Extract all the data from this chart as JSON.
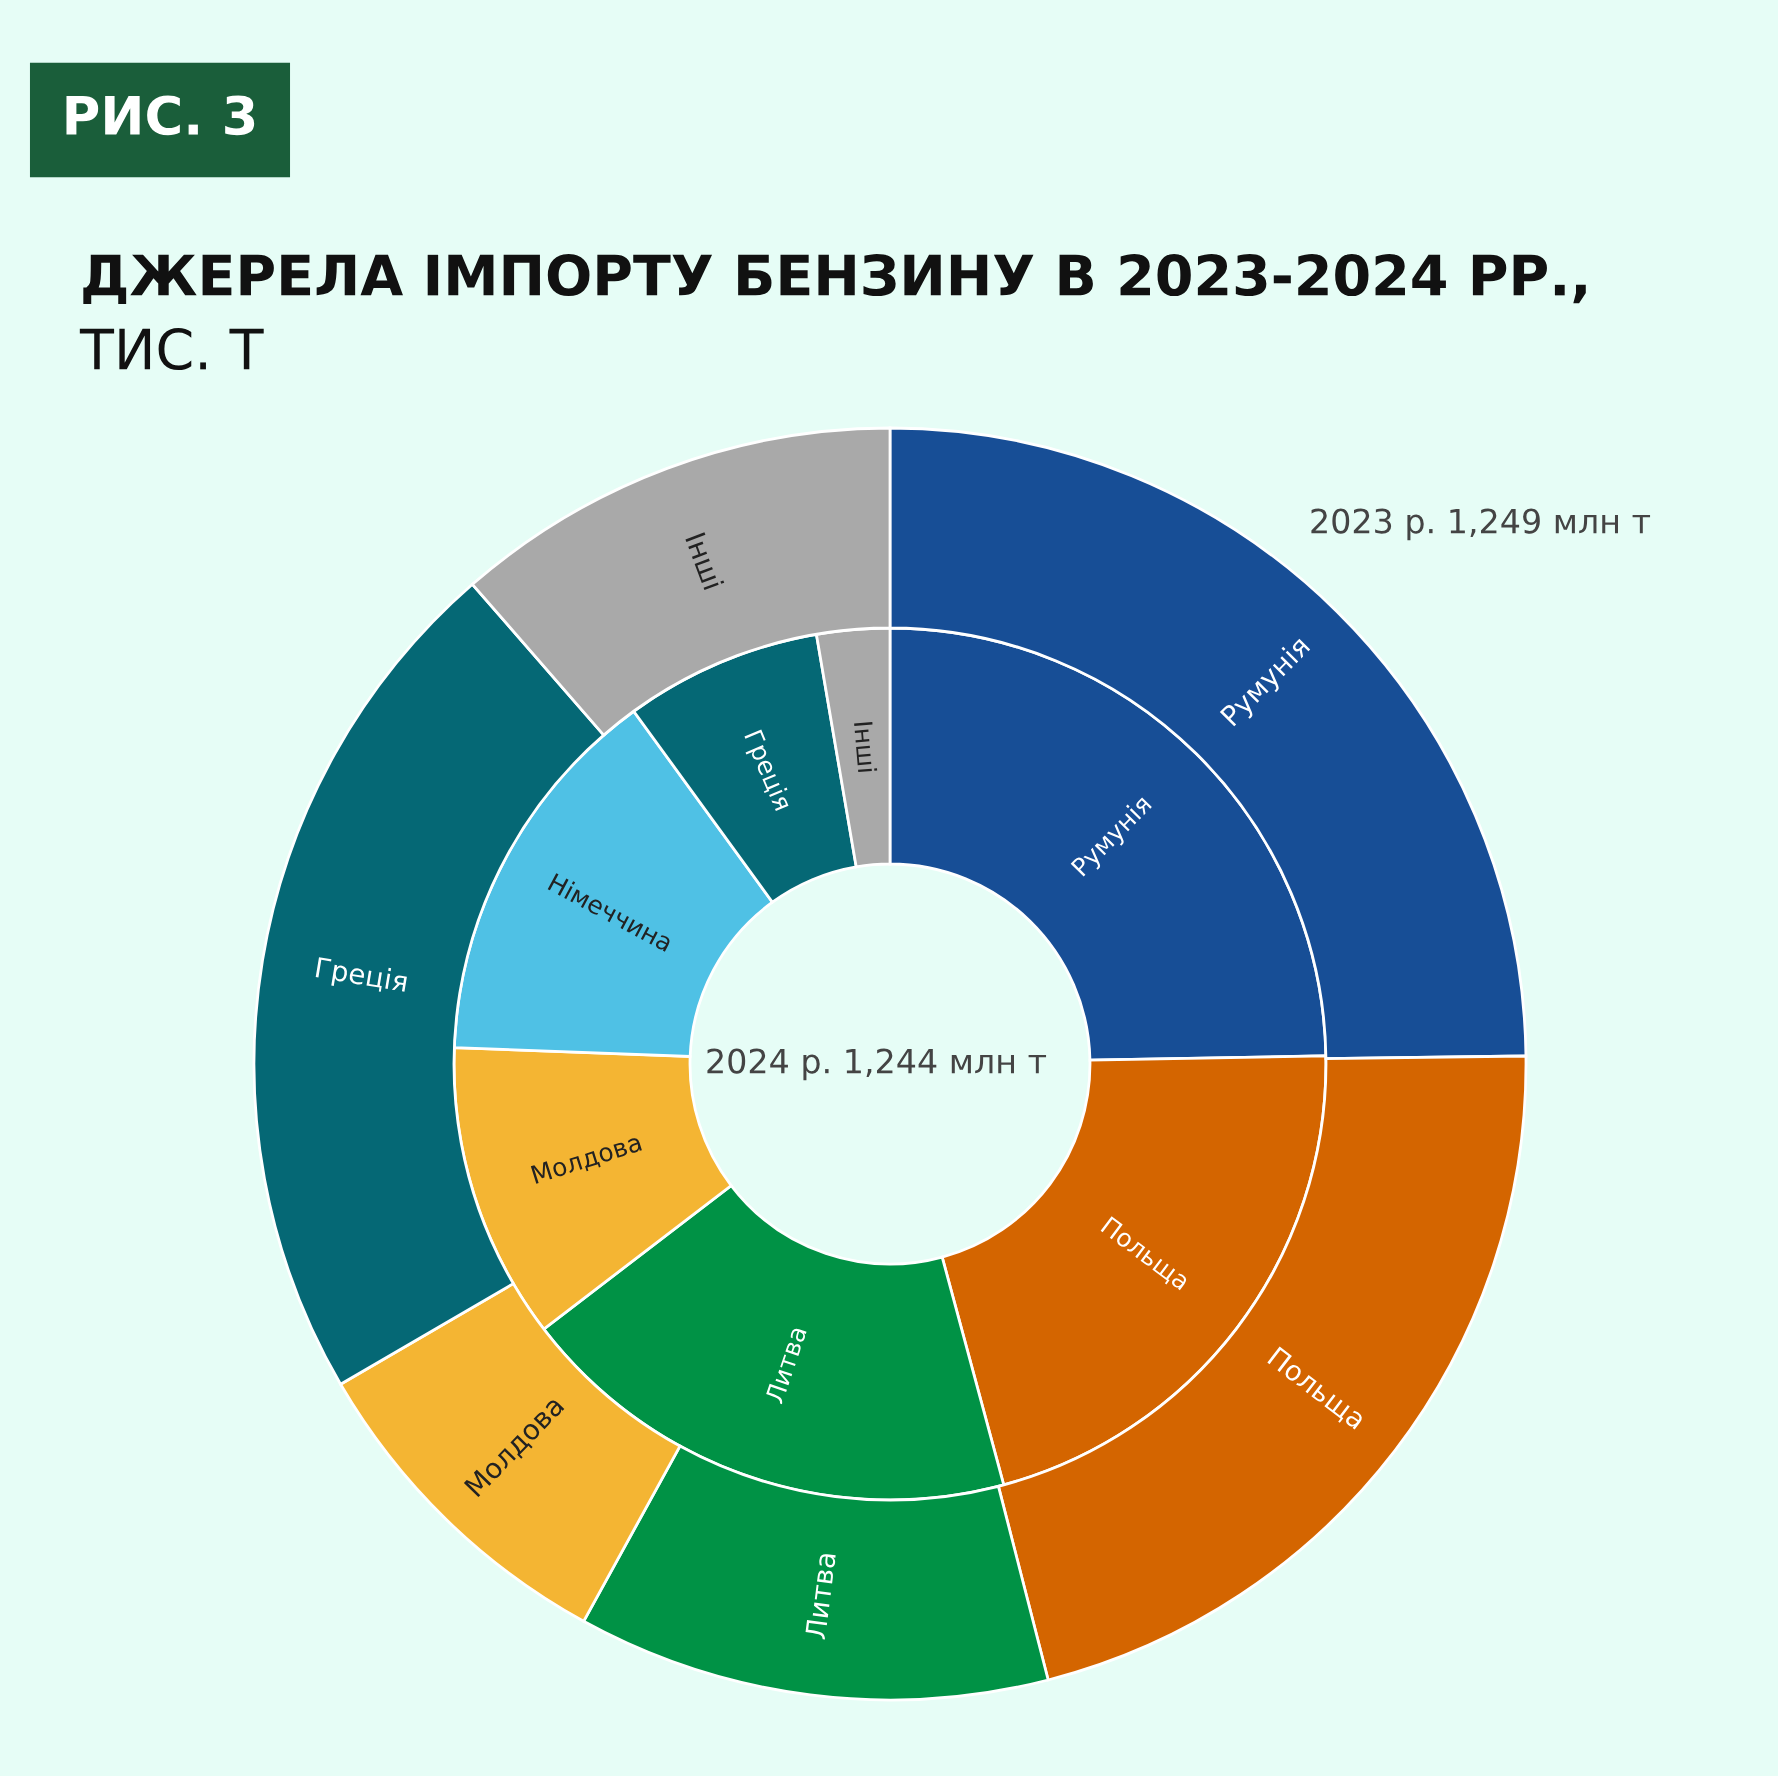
{
  "chart_data": {
    "type": "donut",
    "title": "ДЖЕРЕЛА ІМПОРТУ БЕНЗИНУ В 2023-2024 РР.,",
    "subtitle": "ТИС. Т",
    "annotations": [
      "РИС. 3"
    ],
    "categories": [
      "Румунія",
      "Польща",
      "Литва",
      "Молдова",
      "Німеччина",
      "Греція",
      "Інші"
    ],
    "colors": [
      "#174e96",
      "#d46500",
      "#009245",
      "#f4b533",
      "#4fc1e5",
      "#056875",
      "#a9a9a9"
    ],
    "series": [
      {
        "name": "2024 р. 1,244 млн т",
        "values": [
          24.7,
          21.1,
          18.8,
          11.0,
          14.4,
          7.3,
          2.7
        ]
      },
      {
        "name": "2023 р. 1,249 млн т",
        "values": [
          24.8,
          21.2,
          12.0,
          8.6,
          null,
          22.0,
          11.4
        ]
      }
    ],
    "legend": false
  }
}
